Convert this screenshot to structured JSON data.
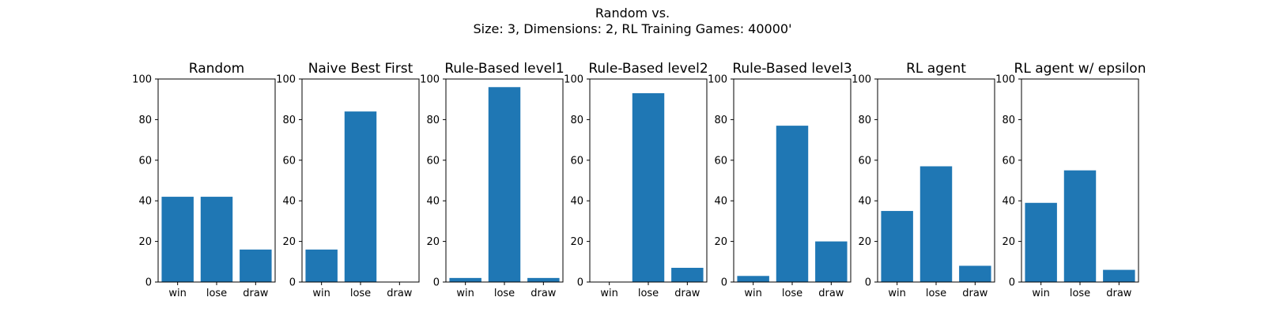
{
  "figure": {
    "title_line1": "Random vs.",
    "title_line2": "Size: 3, Dimensions: 2, RL Training Games: 40000'"
  },
  "colors": {
    "bar": "#1f77b4"
  },
  "chart_data": [
    {
      "type": "bar",
      "title": "Random",
      "categories": [
        "win",
        "lose",
        "draw"
      ],
      "values": [
        42,
        42,
        16
      ],
      "ylim": [
        0,
        100
      ],
      "yticks": [
        0,
        20,
        40,
        60,
        80,
        100
      ],
      "grid": false
    },
    {
      "type": "bar",
      "title": "Naive Best First",
      "categories": [
        "win",
        "lose",
        "draw"
      ],
      "values": [
        16,
        84,
        0
      ],
      "ylim": [
        0,
        100
      ],
      "yticks": [
        0,
        20,
        40,
        60,
        80,
        100
      ],
      "grid": false
    },
    {
      "type": "bar",
      "title": "Rule-Based level1",
      "categories": [
        "win",
        "lose",
        "draw"
      ],
      "values": [
        2,
        96,
        2
      ],
      "ylim": [
        0,
        100
      ],
      "yticks": [
        0,
        20,
        40,
        60,
        80,
        100
      ],
      "grid": false
    },
    {
      "type": "bar",
      "title": "Rule-Based level2",
      "categories": [
        "win",
        "lose",
        "draw"
      ],
      "values": [
        0,
        93,
        7
      ],
      "ylim": [
        0,
        100
      ],
      "yticks": [
        0,
        20,
        40,
        60,
        80,
        100
      ],
      "grid": false
    },
    {
      "type": "bar",
      "title": "Rule-Based level3",
      "categories": [
        "win",
        "lose",
        "draw"
      ],
      "values": [
        3,
        77,
        20
      ],
      "ylim": [
        0,
        100
      ],
      "yticks": [
        0,
        20,
        40,
        60,
        80,
        100
      ],
      "grid": false
    },
    {
      "type": "bar",
      "title": "RL agent",
      "categories": [
        "win",
        "lose",
        "draw"
      ],
      "values": [
        35,
        57,
        8
      ],
      "ylim": [
        0,
        100
      ],
      "yticks": [
        0,
        20,
        40,
        60,
        80,
        100
      ],
      "grid": false
    },
    {
      "type": "bar",
      "title": "RL agent w/ epsilon",
      "categories": [
        "win",
        "lose",
        "draw"
      ],
      "values": [
        39,
        55,
        6
      ],
      "ylim": [
        0,
        100
      ],
      "yticks": [
        0,
        20,
        40,
        60,
        80,
        100
      ],
      "grid": false
    }
  ]
}
